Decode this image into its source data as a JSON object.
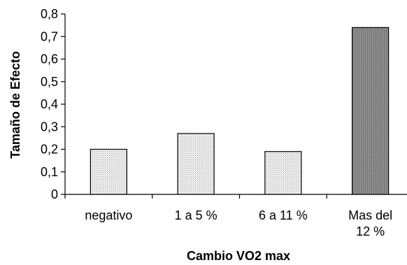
{
  "chart_data": {
    "type": "bar",
    "xlabel": "Cambio VO2 max",
    "ylabel": "Tamaño de Efecto",
    "ylim": [
      0,
      0.8
    ],
    "yticks": [
      "0",
      "0,1",
      "0,2",
      "0,3",
      "0,4",
      "0,5",
      "0,6",
      "0,7",
      "0,8"
    ],
    "categories": [
      [
        "negativo"
      ],
      [
        "1 a 5 %"
      ],
      [
        "6 a 11 %"
      ],
      [
        "Mas del",
        "12 %"
      ]
    ],
    "values": [
      0.2,
      0.27,
      0.19,
      0.74
    ],
    "bar_fills": [
      "light-dotted",
      "light-dotted",
      "light-dotted",
      "dark-dotted"
    ],
    "grid": false,
    "legend": "none"
  }
}
